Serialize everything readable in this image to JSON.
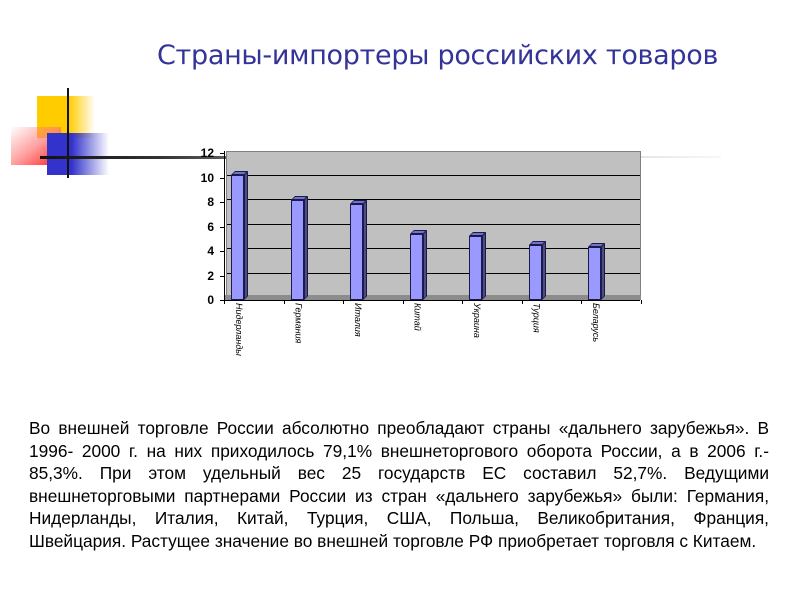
{
  "slide": {
    "title": "Страны-импортеры российских товаров",
    "body_text": "Во внешней торговле России абсолютно преобладают страны «дальнего зарубежья». В 1996- 2000 г. на них приходилось 79,1% внешнеторгового оборота России, а в 2006 г.- 85,3%. При этом удельный вес 25 государств ЕС составил 52,7%. Ведущими внешнеторговыми партнерами России из стран «дальнего зарубежья» были: Германия, Нидерланды, Италия, Китай, Турция, США, Польша, Великобритания, Франция, Швейцария. Растущее значение во внешней торговле РФ приобретает торговля с Китаем."
  },
  "colors": {
    "title": "#333399",
    "bar_face": "#9999ff",
    "bar_side": "#4d4d80",
    "plot_background": "#c0c0c0",
    "deco_yellow": "#ffcc00",
    "deco_red": "#ff2020",
    "deco_blue": "#3333cc"
  },
  "chart": {
    "y_ticks": [
      "0",
      "2",
      "4",
      "6",
      "8",
      "10",
      "12"
    ]
  },
  "chart_data": {
    "type": "bar",
    "title": "",
    "xlabel": "",
    "ylabel": "",
    "categories": [
      "Нидерланды",
      "Германия",
      "Италия",
      "Китай",
      "Украина",
      "Турция",
      "Беларусь"
    ],
    "values": [
      10.2,
      8.2,
      7.8,
      5.4,
      5.2,
      4.5,
      4.3
    ],
    "ylim": [
      0,
      12
    ],
    "y_tick_step": 2,
    "grid": true,
    "legend": null,
    "style": "3d-column"
  }
}
